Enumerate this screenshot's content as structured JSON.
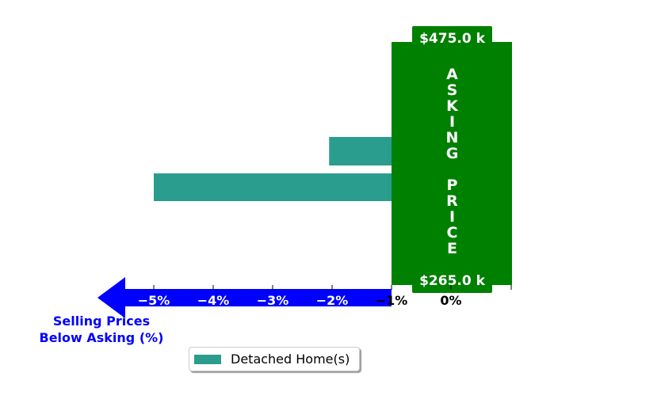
{
  "chart_data": {
    "type": "bar",
    "orientation": "horizontal",
    "series": [
      {
        "name": "Detached Home(s)",
        "color": "#2a9d8f",
        "values": [
          -2.05,
          -5.0
        ]
      }
    ],
    "x_ticks": [
      {
        "value": -5,
        "label": "−5%"
      },
      {
        "value": -4,
        "label": "−4%"
      },
      {
        "value": -3,
        "label": "−3%"
      },
      {
        "value": -2,
        "label": "−2%"
      },
      {
        "value": -1,
        "label": "−1%"
      },
      {
        "value": 0,
        "label": "0%"
      }
    ],
    "xlim": [
      -5.95,
      1.0
    ],
    "grid": false,
    "legend_placement": "bottom-center",
    "asking_price_banner": {
      "text": "ASKING PRICE",
      "top_price": "$475.0 k",
      "bottom_price": "$265.0 k",
      "color": "#008000"
    },
    "axis_arrow": {
      "color": "#0000ff",
      "label_line1": "Selling Prices",
      "label_line2": "Below Asking (%)"
    }
  }
}
